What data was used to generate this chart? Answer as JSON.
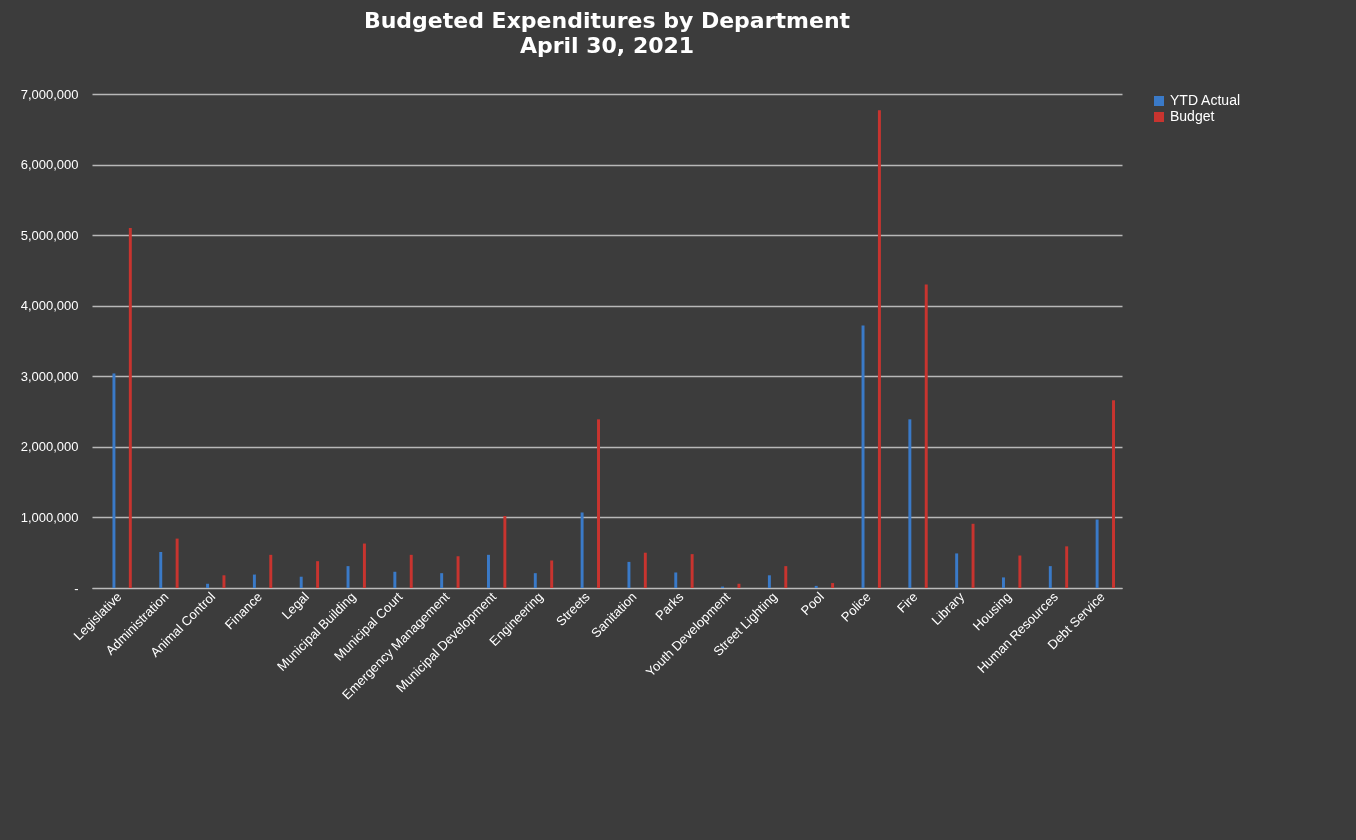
{
  "chart_data": {
    "type": "bar",
    "title": "Budgeted Expenditures  by Department",
    "subtitle": "April 30, 2021",
    "categories": [
      "Legislative",
      "Administration",
      "Animal Control",
      "Finance",
      "Legal",
      "Municipal Building",
      "Municipal Court",
      "Emergency Management",
      "Municipal Development",
      "Engineering",
      "Streets",
      "Sanitation",
      "Parks",
      "Youth Development",
      "Street Lighting",
      "Pool",
      "Police",
      "Fire",
      "Library",
      "Housing",
      "Human Resources",
      "Debt Service"
    ],
    "series": [
      {
        "name": "YTD Actual",
        "color": "#3a7ac8",
        "values": [
          3040000,
          510000,
          60000,
          190000,
          160000,
          310000,
          230000,
          210000,
          470000,
          210000,
          1070000,
          370000,
          220000,
          20000,
          180000,
          30000,
          3720000,
          2390000,
          490000,
          150000,
          310000,
          970000
        ]
      },
      {
        "name": "Budget",
        "color": "#c8342f",
        "values": [
          5100000,
          700000,
          180000,
          470000,
          380000,
          630000,
          470000,
          450000,
          1020000,
          390000,
          2390000,
          500000,
          480000,
          60000,
          310000,
          70000,
          6770000,
          4300000,
          910000,
          460000,
          590000,
          2660000
        ]
      }
    ],
    "ylim": [
      0,
      7000000
    ],
    "yticks": [
      {
        "value": 0,
        "label": "-"
      },
      {
        "value": 1000000,
        "label": "1,000,000"
      },
      {
        "value": 2000000,
        "label": "2,000,000"
      },
      {
        "value": 3000000,
        "label": "3,000,000"
      },
      {
        "value": 4000000,
        "label": "4,000,000"
      },
      {
        "value": 5000000,
        "label": "5,000,000"
      },
      {
        "value": 6000000,
        "label": "6,000,000"
      },
      {
        "value": 7000000,
        "label": "7,000,000"
      }
    ],
    "grid": "y",
    "legend": "right"
  }
}
